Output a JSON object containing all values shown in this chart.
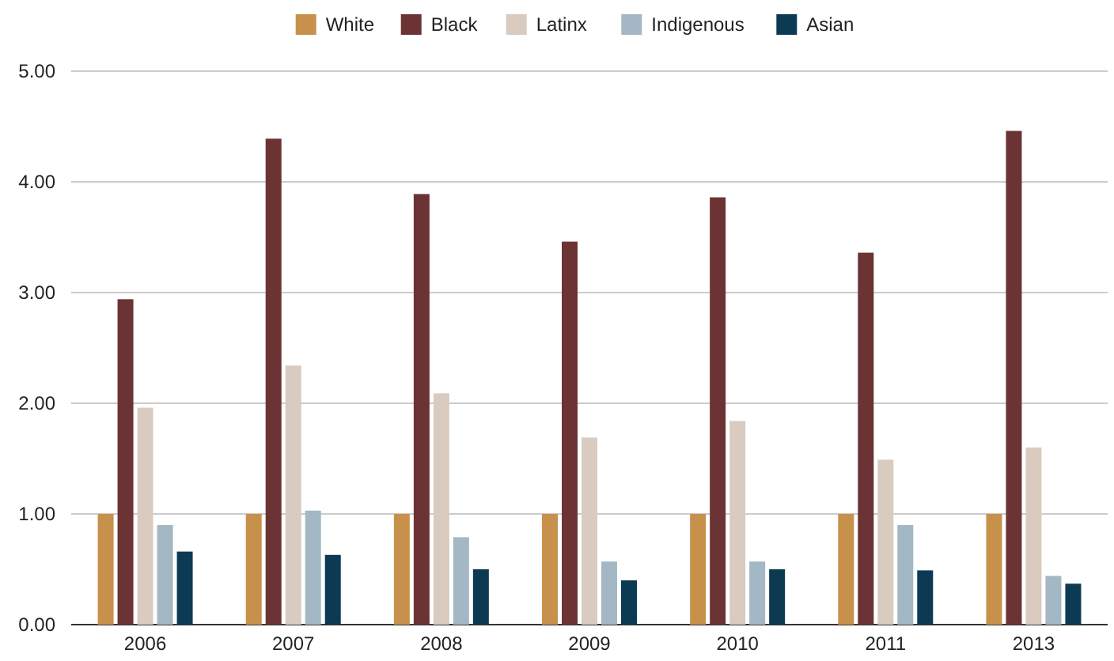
{
  "chart_data": {
    "type": "bar",
    "categories": [
      "2006",
      "2007",
      "2008",
      "2009",
      "2010",
      "2011",
      "2013"
    ],
    "series": [
      {
        "name": "White",
        "color": "#c8914b",
        "values": [
          1.0,
          1.0,
          1.0,
          1.0,
          1.0,
          1.0,
          1.0
        ]
      },
      {
        "name": "Black",
        "color": "#6b3334",
        "values": [
          2.94,
          4.39,
          3.89,
          3.46,
          3.86,
          3.36,
          4.46
        ]
      },
      {
        "name": "Latinx",
        "color": "#d9cbbf",
        "values": [
          1.96,
          2.34,
          2.09,
          1.69,
          1.84,
          1.49,
          1.6
        ]
      },
      {
        "name": "Indigenous",
        "color": "#a3b8c4",
        "values": [
          0.9,
          1.03,
          0.79,
          0.57,
          0.57,
          0.9,
          0.44
        ]
      },
      {
        "name": "Asian",
        "color": "#0d3a53",
        "values": [
          0.66,
          0.63,
          0.5,
          0.4,
          0.5,
          0.49,
          0.37
        ]
      }
    ],
    "ylim": [
      0,
      5
    ],
    "yticks": [
      {
        "value": 0,
        "label": "0.00"
      },
      {
        "value": 1,
        "label": "1.00"
      },
      {
        "value": 2,
        "label": "2.00"
      },
      {
        "value": 3,
        "label": "3.00"
      },
      {
        "value": 4,
        "label": "4.00"
      },
      {
        "value": 5,
        "label": "5.00"
      }
    ],
    "grid": "y",
    "legend": "top"
  }
}
